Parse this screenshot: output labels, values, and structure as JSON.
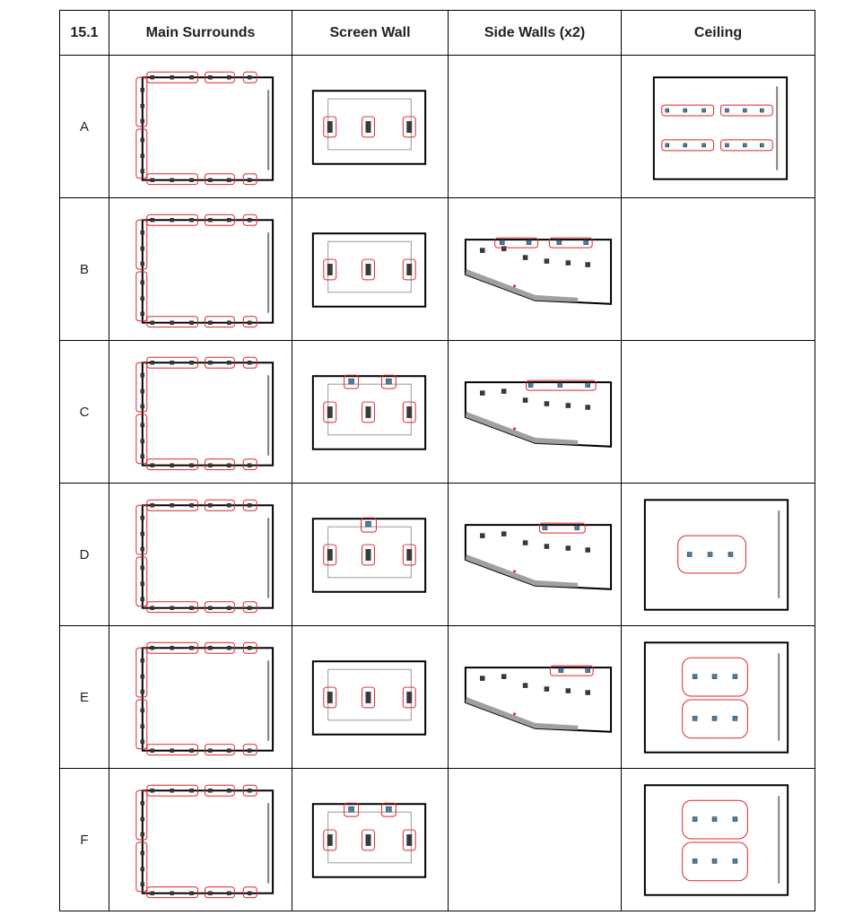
{
  "table": {
    "header": {
      "id": "15.1",
      "main_surrounds": "Main Surrounds",
      "screen_wall": "Screen Wall",
      "side_walls": "Side Walls (x2)",
      "ceiling": "Ceiling"
    },
    "rows": [
      {
        "label": "A",
        "screen_wall": "three-screen",
        "side_walls": "none",
        "ceiling": "two-rows-of-three-pairs"
      },
      {
        "label": "B",
        "screen_wall": "three-screen",
        "side_walls": "two-groups-of-two",
        "ceiling": "none"
      },
      {
        "label": "C",
        "screen_wall": "three-screen-plus-two-top",
        "side_walls": "one-group-of-three",
        "ceiling": "none"
      },
      {
        "label": "D",
        "screen_wall": "three-screen-plus-one-top",
        "side_walls": "one-group-of-two",
        "ceiling": "single-group-of-three"
      },
      {
        "label": "E",
        "screen_wall": "three-screen",
        "side_walls": "one-group-of-two-rear",
        "ceiling": "two-groups-of-three"
      },
      {
        "label": "F",
        "screen_wall": "three-screen-plus-two-top",
        "side_walls": "none",
        "ceiling": "two-groups-of-three"
      }
    ]
  },
  "colors": {
    "group_outline": "#e0232a",
    "speaker_dark": "#3a3a3a",
    "speaker_blue": "#4a7fa8",
    "wall_line": "#000000",
    "screen_line": "#808080",
    "slope": "#a0a0a0"
  }
}
